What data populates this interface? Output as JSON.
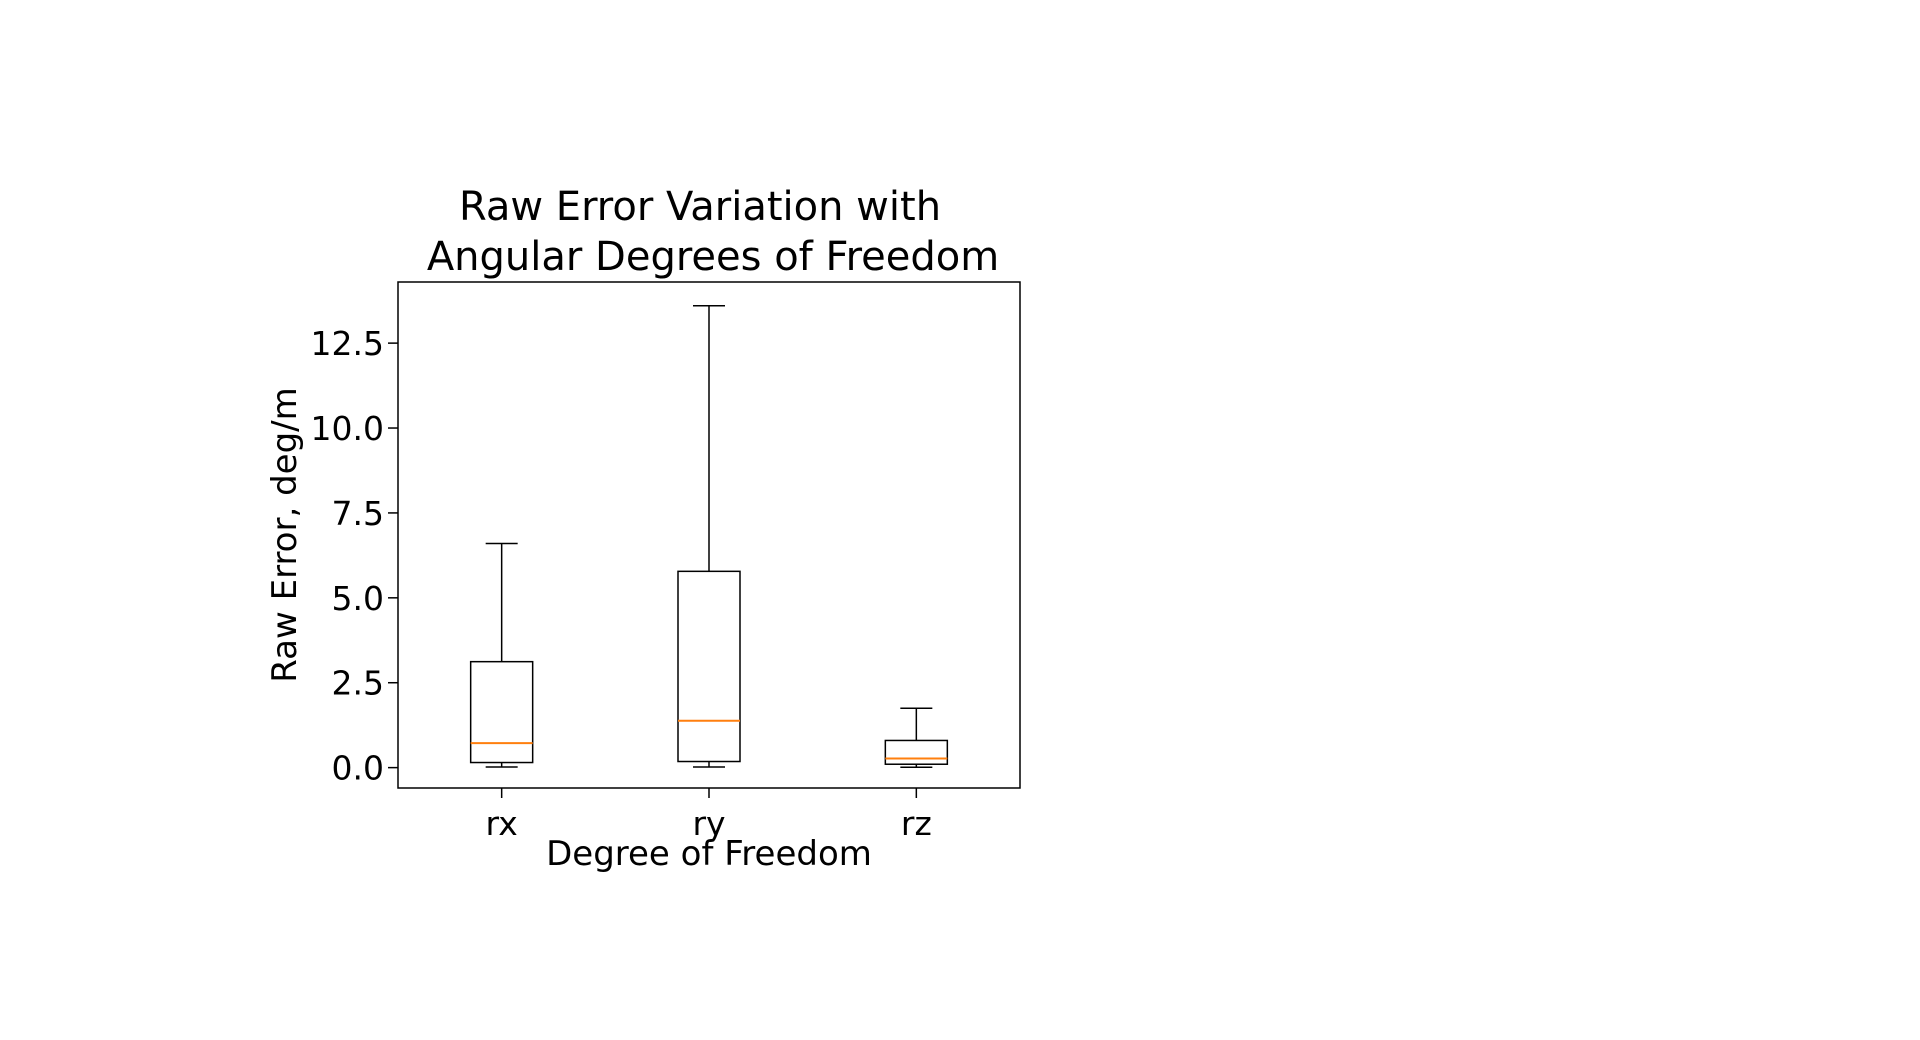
{
  "chart_data": {
    "type": "box",
    "title_lines": [
      "Raw Error Variation with",
      "Angular Degrees of Freedom"
    ],
    "xlabel": "Degree of Freedom",
    "ylabel": "Raw Error, deg/m",
    "categories": [
      "rx",
      "ry",
      "rz"
    ],
    "boxes": [
      {
        "label": "rx",
        "whisker_low": 0.02,
        "q1": 0.15,
        "median": 0.72,
        "q3": 3.12,
        "whisker_high": 6.6
      },
      {
        "label": "ry",
        "whisker_low": 0.02,
        "q1": 0.18,
        "median": 1.38,
        "q3": 5.78,
        "whisker_high": 13.6
      },
      {
        "label": "rz",
        "whisker_low": 0.01,
        "q1": 0.1,
        "median": 0.27,
        "q3": 0.8,
        "whisker_high": 1.75
      }
    ],
    "y_ticks": [
      0.0,
      2.5,
      5.0,
      7.5,
      10.0,
      12.5
    ],
    "y_tick_labels": [
      "0.0",
      "2.5",
      "5.0",
      "7.5",
      "10.0",
      "12.5"
    ],
    "ylim": [
      -0.6,
      14.3
    ],
    "grid": false,
    "colors": {
      "box": "#000000",
      "median": "#ff7f0e"
    }
  }
}
